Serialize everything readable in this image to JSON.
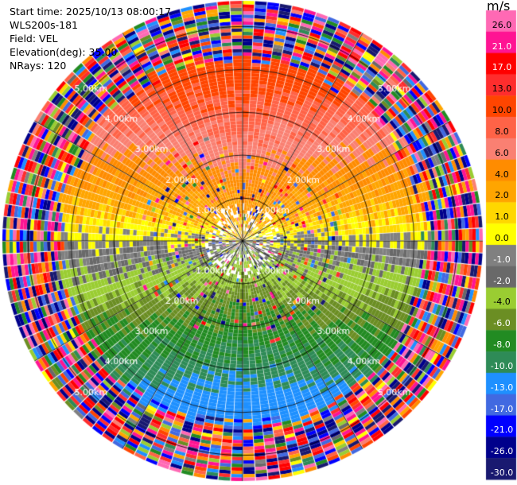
{
  "info": {
    "start_time": "Start time: 2025/10/13 08:00:17",
    "instrument": "WLS200s-181",
    "field": "Field: VEL",
    "elevation": "Elevation(deg): 35.00",
    "nrays": "NRays: 120"
  },
  "colorbar": {
    "unit": "m/s",
    "labels": [
      "26.0",
      "21.0",
      "17.0",
      "13.0",
      "10.0",
      "8.0",
      "6.0",
      "4.0",
      "2.0",
      "1.0",
      "0.0",
      "-1.0",
      "-2.0",
      "-4.0",
      "-6.0",
      "-8.0",
      "-10.0",
      "-13.0",
      "-17.0",
      "-21.0",
      "-26.0",
      "-30.0"
    ],
    "colors": [
      "#ff69b4",
      "#ff1493",
      "#ff0000",
      "#ff2d2d",
      "#ff4500",
      "#ff6347",
      "#fa8072",
      "#ff8c00",
      "#ffa500",
      "#ffd700",
      "#ffff00",
      "#808080",
      "#696969",
      "#9acd32",
      "#6b8e23",
      "#228b22",
      "#2e8b57",
      "#1e90ff",
      "#4169e1",
      "#0000ff",
      "#00008b",
      "#191970"
    ]
  },
  "chart_data": {
    "type": "heatmap",
    "projection": "polar (PPI)",
    "field": "VEL",
    "unit": "m/s",
    "elevation_deg": 35.0,
    "n_rays": 120,
    "range_rings_km": [
      1.0,
      2.0,
      3.0,
      4.0,
      5.0
    ],
    "ring_labels": [
      "1.00km",
      "2.00km",
      "3.00km",
      "4.00km",
      "5.00km"
    ],
    "max_range_km": 5.6,
    "color_levels": [
      -30.0,
      -26.0,
      -21.0,
      -17.0,
      -13.0,
      -10.0,
      -8.0,
      -6.0,
      -4.0,
      -2.0,
      -1.0,
      0.0,
      1.0,
      2.0,
      4.0,
      6.0,
      8.0,
      10.0,
      13.0,
      17.0,
      21.0,
      26.0
    ],
    "pattern": {
      "description_values": "approx radial velocity: positive toward north, negative toward south",
      "north_max": 13.0,
      "south_min": -13.0,
      "noise_beyond_km": 4.3
    }
  }
}
